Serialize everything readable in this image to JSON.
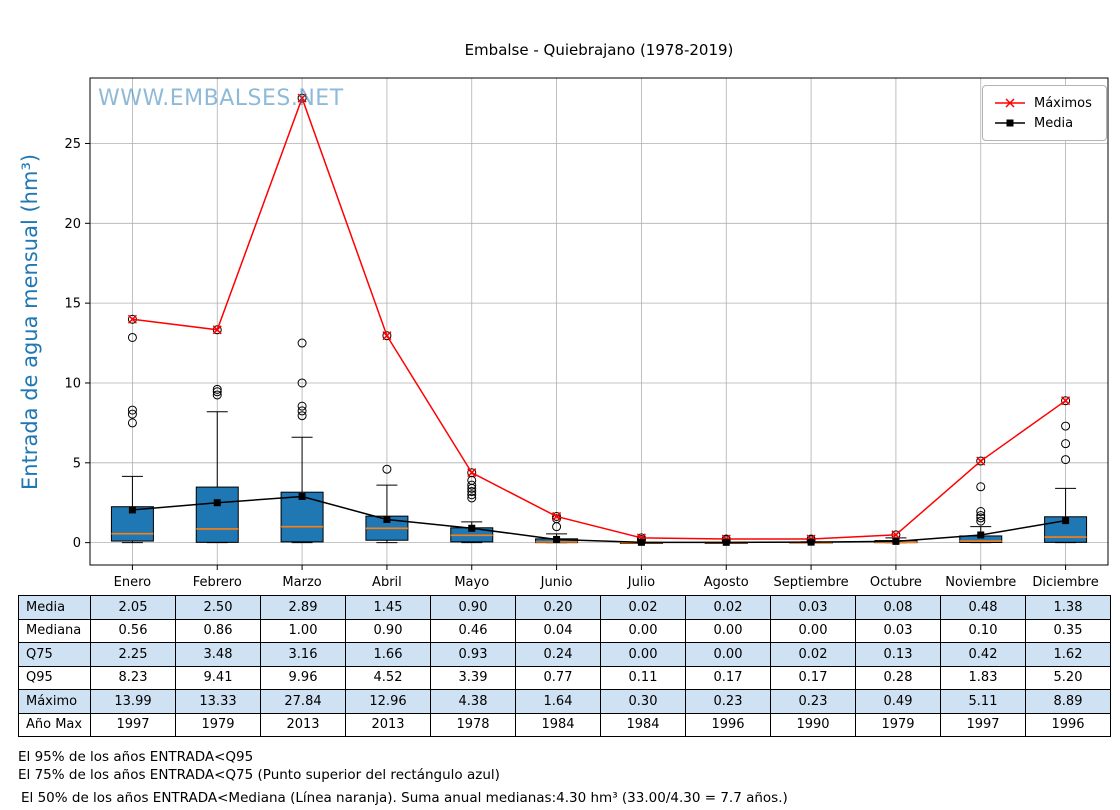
{
  "title": "Embalse - Quiebrajano (1978-2019)",
  "watermark": "WWW.EMBALSES.NET",
  "colors": {
    "box_fill": "#1f77b4",
    "median_line": "#ff7f0e",
    "grid": "#b0b0b0",
    "axis": "#000000",
    "ylabel": "#1f77b4",
    "watermark": "#1f77b4",
    "table_alt_row": "#cfe2f3",
    "maximos": "#ff0000",
    "media": "#000000"
  },
  "chart_data": {
    "type": "boxplot",
    "title": "Embalse - Quiebrajano (1978-2019)",
    "ylabel": "Entrada de agua mensual (hm³)",
    "xlabel": "",
    "categories": [
      "Enero",
      "Febrero",
      "Marzo",
      "Abril",
      "Mayo",
      "Junio",
      "Julio",
      "Agosto",
      "Septiembre",
      "Octubre",
      "Noviembre",
      "Diciembre"
    ],
    "ylim": [
      -1.4,
      29.1
    ],
    "yticks": [
      0,
      5,
      10,
      15,
      20,
      25
    ],
    "grid": true,
    "legend_position": "upper right",
    "series": [
      {
        "name": "Máximos",
        "marker": "x",
        "color": "#ff0000",
        "values": [
          13.99,
          13.33,
          27.84,
          12.96,
          4.38,
          1.64,
          0.3,
          0.23,
          0.23,
          0.49,
          5.11,
          8.89
        ]
      },
      {
        "name": "Media",
        "marker": "square",
        "color": "#000000",
        "values": [
          2.05,
          2.5,
          2.89,
          1.45,
          0.9,
          0.2,
          0.02,
          0.02,
          0.03,
          0.08,
          0.48,
          1.38
        ]
      }
    ],
    "boxes": [
      {
        "month": "Enero",
        "whisker_low": 0.0,
        "q1": 0.1,
        "median": 0.56,
        "q3": 2.25,
        "whisker_high": 4.15,
        "outliers": [
          7.5,
          8.05,
          8.3,
          12.85,
          13.99
        ]
      },
      {
        "month": "Febrero",
        "whisker_low": 0.0,
        "q1": 0.02,
        "median": 0.86,
        "q3": 3.48,
        "whisker_high": 8.2,
        "outliers": [
          9.25,
          9.45,
          9.6,
          13.33
        ]
      },
      {
        "month": "Marzo",
        "whisker_low": 0.0,
        "q1": 0.05,
        "median": 1.0,
        "q3": 3.16,
        "whisker_high": 6.6,
        "outliers": [
          7.95,
          8.25,
          8.55,
          10.0,
          12.5,
          27.84
        ]
      },
      {
        "month": "Abril",
        "whisker_low": 0.0,
        "q1": 0.15,
        "median": 0.9,
        "q3": 1.66,
        "whisker_high": 3.6,
        "outliers": [
          4.6,
          12.96
        ]
      },
      {
        "month": "Mayo",
        "whisker_low": 0.0,
        "q1": 0.05,
        "median": 0.46,
        "q3": 0.93,
        "whisker_high": 1.3,
        "outliers": [
          2.8,
          3.0,
          3.2,
          3.4,
          3.6,
          3.9,
          4.38
        ]
      },
      {
        "month": "Junio",
        "whisker_low": 0.0,
        "q1": 0.0,
        "median": 0.04,
        "q3": 0.24,
        "whisker_high": 0.55,
        "outliers": [
          1.0,
          1.5,
          1.64
        ]
      },
      {
        "month": "Julio",
        "whisker_low": 0.0,
        "q1": 0.0,
        "median": 0.0,
        "q3": 0.0,
        "whisker_high": 0.0,
        "outliers": [
          0.11,
          0.2,
          0.3
        ]
      },
      {
        "month": "Agosto",
        "whisker_low": 0.0,
        "q1": 0.0,
        "median": 0.0,
        "q3": 0.0,
        "whisker_high": 0.0,
        "outliers": [
          0.17,
          0.23
        ]
      },
      {
        "month": "Septiembre",
        "whisker_low": 0.0,
        "q1": 0.0,
        "median": 0.0,
        "q3": 0.02,
        "whisker_high": 0.05,
        "outliers": [
          0.17,
          0.23
        ]
      },
      {
        "month": "Octubre",
        "whisker_low": 0.0,
        "q1": 0.0,
        "median": 0.03,
        "q3": 0.13,
        "whisker_high": 0.3,
        "outliers": [
          0.49
        ]
      },
      {
        "month": "Noviembre",
        "whisker_low": 0.0,
        "q1": 0.01,
        "median": 0.1,
        "q3": 0.42,
        "whisker_high": 1.0,
        "outliers": [
          1.35,
          1.55,
          1.7,
          1.95,
          3.5,
          5.11
        ]
      },
      {
        "month": "Diciembre",
        "whisker_low": 0.0,
        "q1": 0.02,
        "median": 0.35,
        "q3": 1.62,
        "whisker_high": 3.4,
        "outliers": [
          5.2,
          6.2,
          7.3,
          8.89
        ]
      }
    ]
  },
  "table": {
    "rows": [
      {
        "label": "Media",
        "values": [
          "2.05",
          "2.50",
          "2.89",
          "1.45",
          "0.90",
          "0.20",
          "0.02",
          "0.02",
          "0.03",
          "0.08",
          "0.48",
          "1.38"
        ]
      },
      {
        "label": "Mediana",
        "values": [
          "0.56",
          "0.86",
          "1.00",
          "0.90",
          "0.46",
          "0.04",
          "0.00",
          "0.00",
          "0.00",
          "0.03",
          "0.10",
          "0.35"
        ]
      },
      {
        "label": "Q75",
        "values": [
          "2.25",
          "3.48",
          "3.16",
          "1.66",
          "0.93",
          "0.24",
          "0.00",
          "0.00",
          "0.02",
          "0.13",
          "0.42",
          "1.62"
        ]
      },
      {
        "label": "Q95",
        "values": [
          "8.23",
          "9.41",
          "9.96",
          "4.52",
          "3.39",
          "0.77",
          "0.11",
          "0.17",
          "0.17",
          "0.28",
          "1.83",
          "5.20"
        ]
      },
      {
        "label": "Máximo",
        "values": [
          "13.99",
          "13.33",
          "27.84",
          "12.96",
          "4.38",
          "1.64",
          "0.30",
          "0.23",
          "0.23",
          "0.49",
          "5.11",
          "8.89"
        ]
      },
      {
        "label": "Año Max",
        "values": [
          "1997",
          "1979",
          "2013",
          "2013",
          "1978",
          "1984",
          "1984",
          "1996",
          "1990",
          "1979",
          "1997",
          "1996"
        ]
      }
    ]
  },
  "footnotes": [
    "El 95% de los años ENTRADA<Q95",
    "El 75% de los años ENTRADA<Q75 (Punto superior del rectángulo azul)",
    "El 50% de los años ENTRADA<Mediana (Línea naranja). Suma anual medianas:4.30 hm³ (33.00/4.30 = 7.7 años.)"
  ]
}
